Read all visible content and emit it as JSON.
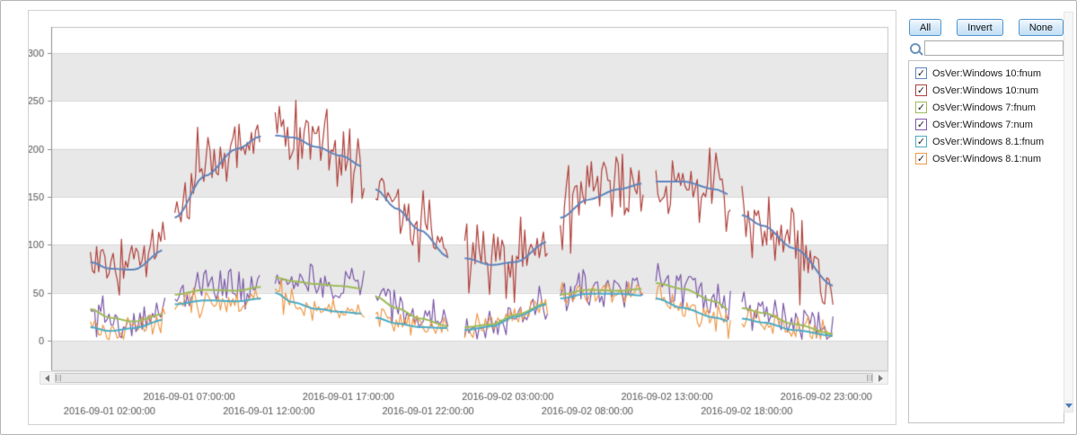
{
  "toolbar": {
    "all_label": "All",
    "invert_label": "Invert",
    "none_label": "None"
  },
  "search": {
    "value": "",
    "placeholder": ""
  },
  "chart_data": {
    "type": "line",
    "title": "",
    "xlabel": "",
    "ylabel": "",
    "colors": {
      "band": "#e8e8e8",
      "grid": "#d9d9d9",
      "plot_border": "#c3c3c3",
      "axis": "#8f8f8f",
      "label": "#555555"
    },
    "x_axis": {
      "ticks": [
        {
          "hour": 2,
          "label": "2016-09-01 02:00:00",
          "row": 2
        },
        {
          "hour": 7,
          "label": "2016-09-01 07:00:00",
          "row": 1
        },
        {
          "hour": 12,
          "label": "2016-09-01 12:00:00",
          "row": 2
        },
        {
          "hour": 17,
          "label": "2016-09-01 17:00:00",
          "row": 1
        },
        {
          "hour": 22,
          "label": "2016-09-01 22:00:00",
          "row": 2
        },
        {
          "hour": 27,
          "label": "2016-09-02 03:00:00",
          "row": 1
        },
        {
          "hour": 32,
          "label": "2016-09-02 08:00:00",
          "row": 2
        },
        {
          "hour": 37,
          "label": "2016-09-02 13:00:00",
          "row": 1
        },
        {
          "hour": 42,
          "label": "2016-09-02 18:00:00",
          "row": 2
        },
        {
          "hour": 47,
          "label": "2016-09-02 23:00:00",
          "row": 1
        }
      ]
    },
    "y_axis": {
      "ticks": [
        300,
        250,
        200,
        150,
        100,
        50,
        0
      ],
      "ylim": [
        -31,
        325
      ],
      "bands": [
        [
          250,
          300
        ],
        [
          150,
          200
        ],
        [
          50,
          100
        ],
        [
          -31,
          0
        ]
      ]
    },
    "anchor_hours": [
      0.8,
      2,
      3.5,
      5.5,
      6.1,
      8,
      10,
      11.5,
      12.4,
      13.5,
      15,
      16.5,
      18,
      18.7,
      20,
      21.5,
      23.3,
      24.3,
      26,
      27.5,
      29.5,
      30.3,
      32,
      34,
      35.5,
      36.3,
      38,
      40,
      41,
      41.7,
      43,
      45,
      47.5
    ],
    "segments_hours": [
      [
        0.8,
        5.5
      ],
      [
        6.1,
        11.5
      ],
      [
        12.4,
        18.0
      ],
      [
        18.7,
        23.3
      ],
      [
        24.3,
        29.5
      ],
      [
        30.3,
        35.5
      ],
      [
        36.3,
        41.0
      ],
      [
        41.7,
        47.5
      ]
    ],
    "series": [
      {
        "name": "OsVer:Windows 10:fnum",
        "color": "#5f85bd",
        "style": "smooth",
        "seed": 3,
        "noise": 0,
        "checked": true,
        "values": [
          82,
          75,
          74,
          95,
          128,
          172,
          200,
          213,
          214,
          212,
          202,
          193,
          181,
          158,
          138,
          115,
          87,
          86,
          79,
          82,
          103,
          128,
          147,
          158,
          164,
          166,
          166,
          158,
          152,
          131,
          120,
          96,
          57
        ]
      },
      {
        "name": "OsVer:Windows 10:num",
        "color": "#b0413b",
        "style": "noisy",
        "seed": 17,
        "noise": 38,
        "checked": true,
        "values": [
          85,
          80,
          78,
          100,
          150,
          185,
          205,
          210,
          215,
          213,
          203,
          192,
          176,
          156,
          140,
          117,
          95,
          86,
          78,
          85,
          100,
          150,
          160,
          165,
          170,
          170,
          170,
          160,
          155,
          130,
          120,
          100,
          55
        ]
      },
      {
        "name": "OsVer:Windows 7:fnum",
        "color": "#9ebc59",
        "style": "smooth",
        "seed": 5,
        "noise": 0,
        "checked": true,
        "values": [
          33,
          24,
          20,
          28,
          48,
          53,
          52,
          56,
          66,
          62,
          59,
          57,
          54,
          46,
          34,
          23,
          15,
          14,
          17,
          27,
          39,
          48,
          53,
          52,
          54,
          60,
          54,
          41,
          31,
          34,
          29,
          17,
          7
        ]
      },
      {
        "name": "OsVer:Windows 7:num",
        "color": "#7b58a8",
        "style": "noisy",
        "seed": 29,
        "noise": 20,
        "checked": true,
        "values": [
          38,
          25,
          18,
          30,
          52,
          55,
          52,
          58,
          72,
          62,
          60,
          58,
          55,
          48,
          35,
          24,
          15,
          14,
          18,
          28,
          40,
          50,
          55,
          52,
          55,
          62,
          55,
          42,
          32,
          35,
          30,
          18,
          8
        ]
      },
      {
        "name": "OsVer:Windows 8.1:fnum",
        "color": "#4bacc6",
        "style": "smooth",
        "seed": 7,
        "noise": 0,
        "checked": true,
        "values": [
          14,
          10,
          13,
          22,
          38,
          42,
          41,
          44,
          50,
          40,
          33,
          30,
          28,
          24,
          18,
          14,
          13,
          11,
          15,
          25,
          38,
          44,
          49,
          49,
          47,
          44,
          34,
          24,
          20,
          23,
          19,
          11,
          5
        ]
      },
      {
        "name": "OsVer:Windows 8.1:num",
        "color": "#ef9a49",
        "style": "noisy",
        "seed": 41,
        "noise": 14,
        "checked": true,
        "values": [
          12,
          10,
          14,
          24,
          40,
          42,
          40,
          45,
          52,
          40,
          32,
          30,
          28,
          25,
          18,
          14,
          14,
          10,
          16,
          26,
          40,
          45,
          50,
          50,
          48,
          45,
          34,
          24,
          20,
          24,
          20,
          12,
          6
        ]
      }
    ]
  }
}
